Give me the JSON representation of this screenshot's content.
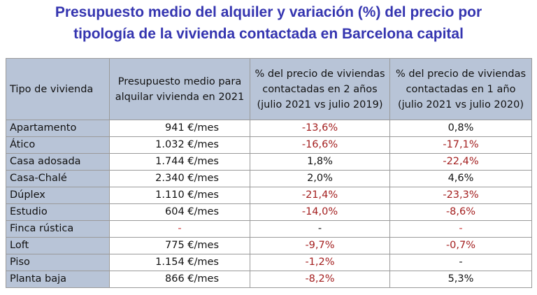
{
  "title": {
    "line1": "Presupuesto medio del alquiler y variación (%) del precio por",
    "line2": "tipología de la vivienda contactada en Barcelona capital"
  },
  "colors": {
    "title": "#3535b0",
    "header_bg": "#b8c4d7",
    "negative": "#a31e1e"
  },
  "table": {
    "headers": {
      "type": "Tipo de vivienda",
      "budget": [
        "Presupuesto medio para",
        "alquilar vivienda en 2021"
      ],
      "pct_2y": [
        "% del precio de viviendas",
        "contactadas en 2 años",
        "(julio 2021 vs julio 2019)"
      ],
      "pct_1y": [
        "% del precio de viviendas",
        "contactadas en 1 año",
        "(julio 2021 vs julio 2020)"
      ]
    },
    "rows": [
      {
        "type": "Apartamento",
        "budget": "941 €/mes",
        "pct_2y": "-13,6%",
        "pct_1y": "0,8%"
      },
      {
        "type": "Ático",
        "budget": "1.032 €/mes",
        "pct_2y": "-16,6%",
        "pct_1y": "-17,1%"
      },
      {
        "type": "Casa adosada",
        "budget": "1.744 €/mes",
        "pct_2y": "1,8%",
        "pct_1y": "-22,4%"
      },
      {
        "type": "Casa-Chalé",
        "budget": "2.340 €/mes",
        "pct_2y": "2,0%",
        "pct_1y": "4,6%"
      },
      {
        "type": "Dúplex",
        "budget": "1.110 €/mes",
        "pct_2y": "-21,4%",
        "pct_1y": "-23,3%"
      },
      {
        "type": "Estudio",
        "budget": "604 €/mes",
        "pct_2y": "-14,0%",
        "pct_1y": "-8,6%"
      },
      {
        "type": "Finca rústica",
        "budget": "-",
        "pct_2y": "-",
        "pct_1y": "-"
      },
      {
        "type": "Loft",
        "budget": "775 €/mes",
        "pct_2y": "-9,7%",
        "pct_1y": "-0,7%"
      },
      {
        "type": "Piso",
        "budget": "1.154 €/mes",
        "pct_2y": "-1,2%",
        "pct_1y": "-"
      },
      {
        "type": "Planta baja",
        "budget": "866 €/mes",
        "pct_2y": "-8,2%",
        "pct_1y": "5,3%"
      }
    ]
  }
}
